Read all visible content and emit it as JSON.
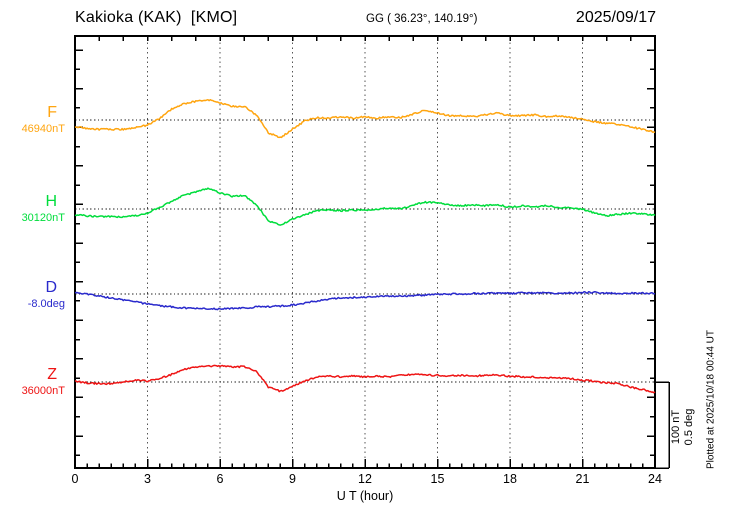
{
  "header": {
    "title": "Kakioka (KAK)  [KMO]",
    "coords": "GG ( 36.23°, 140.19°)",
    "date": "2025/09/17"
  },
  "scale_bar": {
    "line1": "100 nT",
    "line2": "0.5 deg"
  },
  "footer_note": "Plotted at 2025/10/18 00:44 UT",
  "chart_data": {
    "type": "line",
    "title": "Kakioka magnetogram 2025/09/17",
    "xlabel": "U T (hour)",
    "x_ticks": [
      0,
      3,
      6,
      9,
      12,
      15,
      18,
      21,
      24
    ],
    "x_range": [
      0,
      24
    ],
    "hours_step": 0.5,
    "grid": "dotted vertical lines every 3 h, dotted horizontal baseline per component",
    "scale": {
      "bar_nT": 100,
      "bar_deg": 0.5
    },
    "series": [
      {
        "name": "F",
        "unit": "nT",
        "reference": "46940nT",
        "color": "#FFA510",
        "delta_values": [
          -8,
          -10,
          -11,
          -11,
          -11,
          -9,
          -6,
          2,
          13,
          19,
          22,
          24,
          20,
          16,
          16,
          6,
          -15,
          -21,
          -11,
          -1,
          3,
          2,
          4,
          2,
          4,
          2,
          4,
          3,
          7,
          12,
          8,
          5,
          5,
          4,
          6,
          8,
          5,
          5,
          6,
          4,
          5,
          3,
          1,
          -2,
          -4,
          -5,
          -8,
          -11,
          -14
        ]
      },
      {
        "name": "H",
        "unit": "nT",
        "reference": "30120nT",
        "color": "#00DD3C",
        "delta_values": [
          -7,
          -8,
          -9,
          -9,
          -9,
          -8,
          -5,
          2,
          9,
          16,
          20,
          24,
          19,
          15,
          16,
          5,
          -14,
          -19,
          -12,
          -7,
          -2,
          -1,
          -2,
          -1,
          -2,
          0,
          1,
          0,
          5,
          8,
          7,
          5,
          4,
          5,
          4,
          5,
          2,
          4,
          2,
          4,
          2,
          1,
          0,
          -5,
          -8,
          -6,
          -5,
          -6,
          -7
        ]
      },
      {
        "name": "D",
        "unit": "deg",
        "reference": "-8.0deg",
        "color": "#2A2ACC",
        "delta_values": [
          0.006,
          0,
          -0.012,
          -0.024,
          -0.035,
          -0.047,
          -0.059,
          -0.068,
          -0.076,
          -0.082,
          -0.085,
          -0.088,
          -0.088,
          -0.085,
          -0.082,
          -0.076,
          -0.074,
          -0.071,
          -0.065,
          -0.053,
          -0.041,
          -0.029,
          -0.024,
          -0.021,
          -0.018,
          -0.015,
          -0.012,
          -0.012,
          -0.009,
          -0.006,
          -0.003,
          0,
          0,
          0.003,
          0.003,
          0.006,
          0.003,
          0.006,
          0.006,
          0.006,
          0.003,
          0.006,
          0.009,
          0.009,
          0.006,
          0.003,
          0.006,
          0.006,
          0.003
        ]
      },
      {
        "name": "Z",
        "unit": "nT",
        "reference": "36000nT",
        "color": "#EE1414",
        "delta_values": [
          1,
          -1,
          -2,
          -2,
          0,
          2,
          1,
          4,
          9,
          15,
          18,
          19,
          19,
          18,
          18,
          13,
          -6,
          -11,
          -5,
          1,
          6,
          7,
          6,
          7,
          6,
          7,
          6,
          8,
          9,
          8,
          8,
          7,
          8,
          7,
          8,
          8,
          7,
          6,
          6,
          5,
          5,
          4,
          2,
          1,
          -1,
          -2,
          -6,
          -9,
          -12
        ]
      }
    ]
  }
}
